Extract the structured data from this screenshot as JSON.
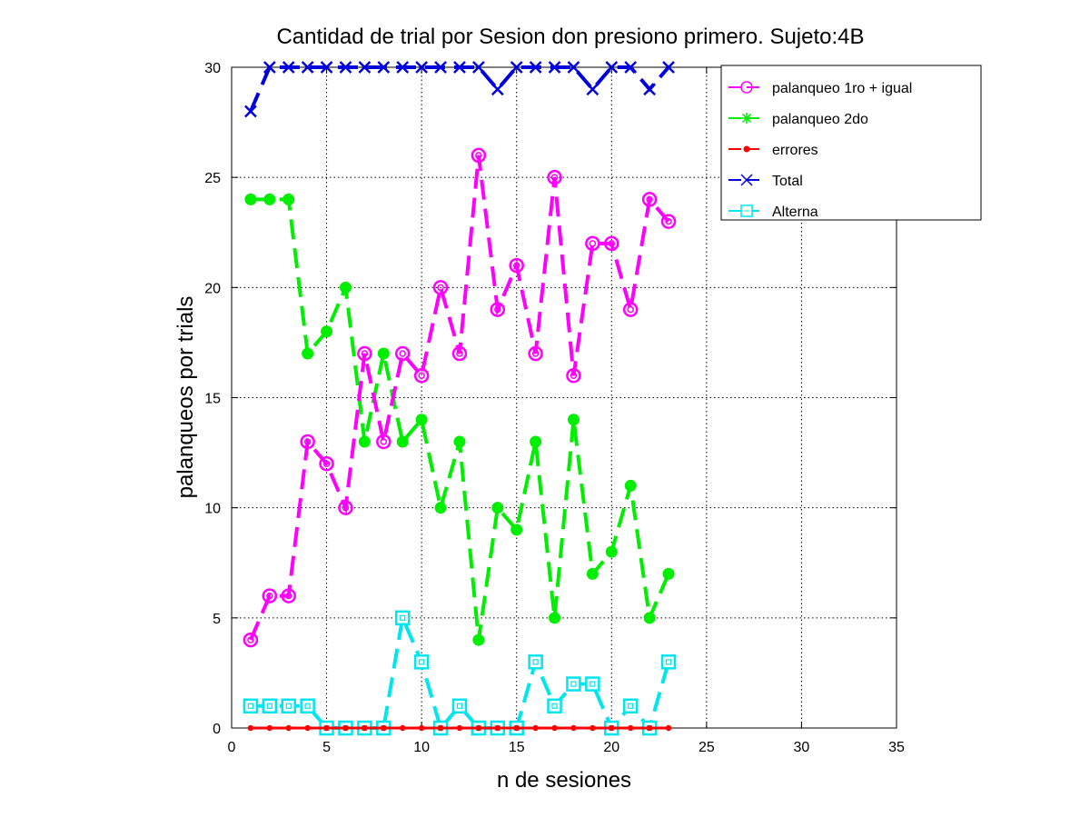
{
  "chart_data": {
    "type": "line",
    "title": "Cantidad de trial por Sesion don presiono primero. Sujeto:4B",
    "xlabel": "n de sesiones",
    "ylabel": "palanqueos por trials",
    "xlim": [
      0,
      35
    ],
    "ylim": [
      0,
      30
    ],
    "xticks": [
      0,
      5,
      10,
      15,
      20,
      25,
      30,
      35
    ],
    "yticks": [
      0,
      5,
      10,
      15,
      20,
      25,
      30
    ],
    "grid": true,
    "legend_position": "top-right",
    "x": [
      1,
      2,
      3,
      4,
      5,
      6,
      7,
      8,
      9,
      10,
      11,
      12,
      13,
      14,
      15,
      16,
      17,
      18,
      19,
      20,
      21,
      22,
      23
    ],
    "series": [
      {
        "name": "palanqueo 1ro + igual",
        "color": "#ff00ff",
        "marker": "circle",
        "values": [
          4,
          6,
          6,
          13,
          12,
          10,
          17,
          13,
          17,
          16,
          20,
          17,
          26,
          19,
          21,
          17,
          25,
          16,
          22,
          22,
          19,
          24,
          23
        ]
      },
      {
        "name": "palanqueo 2do",
        "color": "#00ee00",
        "marker": "star",
        "values": [
          24,
          24,
          24,
          17,
          18,
          20,
          13,
          17,
          13,
          14,
          10,
          13,
          4,
          10,
          9,
          13,
          5,
          14,
          7,
          8,
          11,
          5,
          7
        ]
      },
      {
        "name": "errores",
        "color": "#ff0000",
        "marker": "dot",
        "values": [
          0,
          0,
          0,
          0,
          0,
          0,
          0,
          0,
          0,
          0,
          0,
          0,
          0,
          0,
          0,
          0,
          0,
          0,
          0,
          0,
          0,
          0,
          0
        ]
      },
      {
        "name": "Total",
        "color": "#0000dd",
        "marker": "x",
        "values": [
          28,
          30,
          30,
          30,
          30,
          30,
          30,
          30,
          30,
          30,
          30,
          30,
          30,
          29,
          30,
          30,
          30,
          30,
          29,
          30,
          30,
          29,
          30
        ]
      },
      {
        "name": "Alterna",
        "color": "#00e5ee",
        "marker": "square",
        "values": [
          1,
          1,
          1,
          1,
          0,
          0,
          0,
          0,
          5,
          3,
          0,
          1,
          0,
          0,
          0,
          3,
          1,
          2,
          2,
          0,
          1,
          0,
          3
        ]
      }
    ]
  }
}
